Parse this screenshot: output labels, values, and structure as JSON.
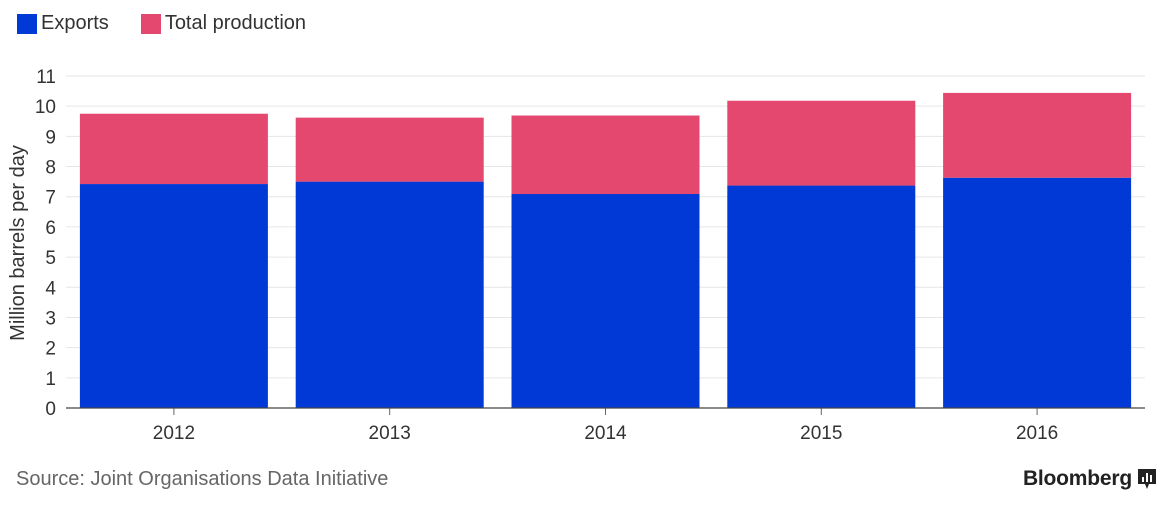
{
  "chart_data": {
    "type": "bar",
    "stacked": true,
    "categories": [
      "2012",
      "2013",
      "2014",
      "2015",
      "2016"
    ],
    "series": [
      {
        "name": "Exports",
        "color": "#0039d6",
        "values": [
          7.42,
          7.5,
          7.09,
          7.37,
          7.63
        ]
      },
      {
        "name": "Total production",
        "color": "#e4486e",
        "values": [
          2.33,
          2.12,
          2.6,
          2.81,
          2.81
        ]
      }
    ],
    "totals": [
      9.75,
      9.62,
      9.69,
      10.18,
      10.44
    ],
    "ylabel": "Million barrels per day",
    "ylim": [
      0,
      11
    ],
    "yticks": [
      "0",
      "1",
      "2",
      "3",
      "4",
      "5",
      "6",
      "7",
      "8",
      "9",
      "10",
      "11"
    ],
    "grid": true,
    "legend": "top-left"
  },
  "footer": {
    "source": "Source: Joint Organisations Data Initiative",
    "brand": "Bloomberg",
    "brand_icon": "bar-chart-icon"
  }
}
